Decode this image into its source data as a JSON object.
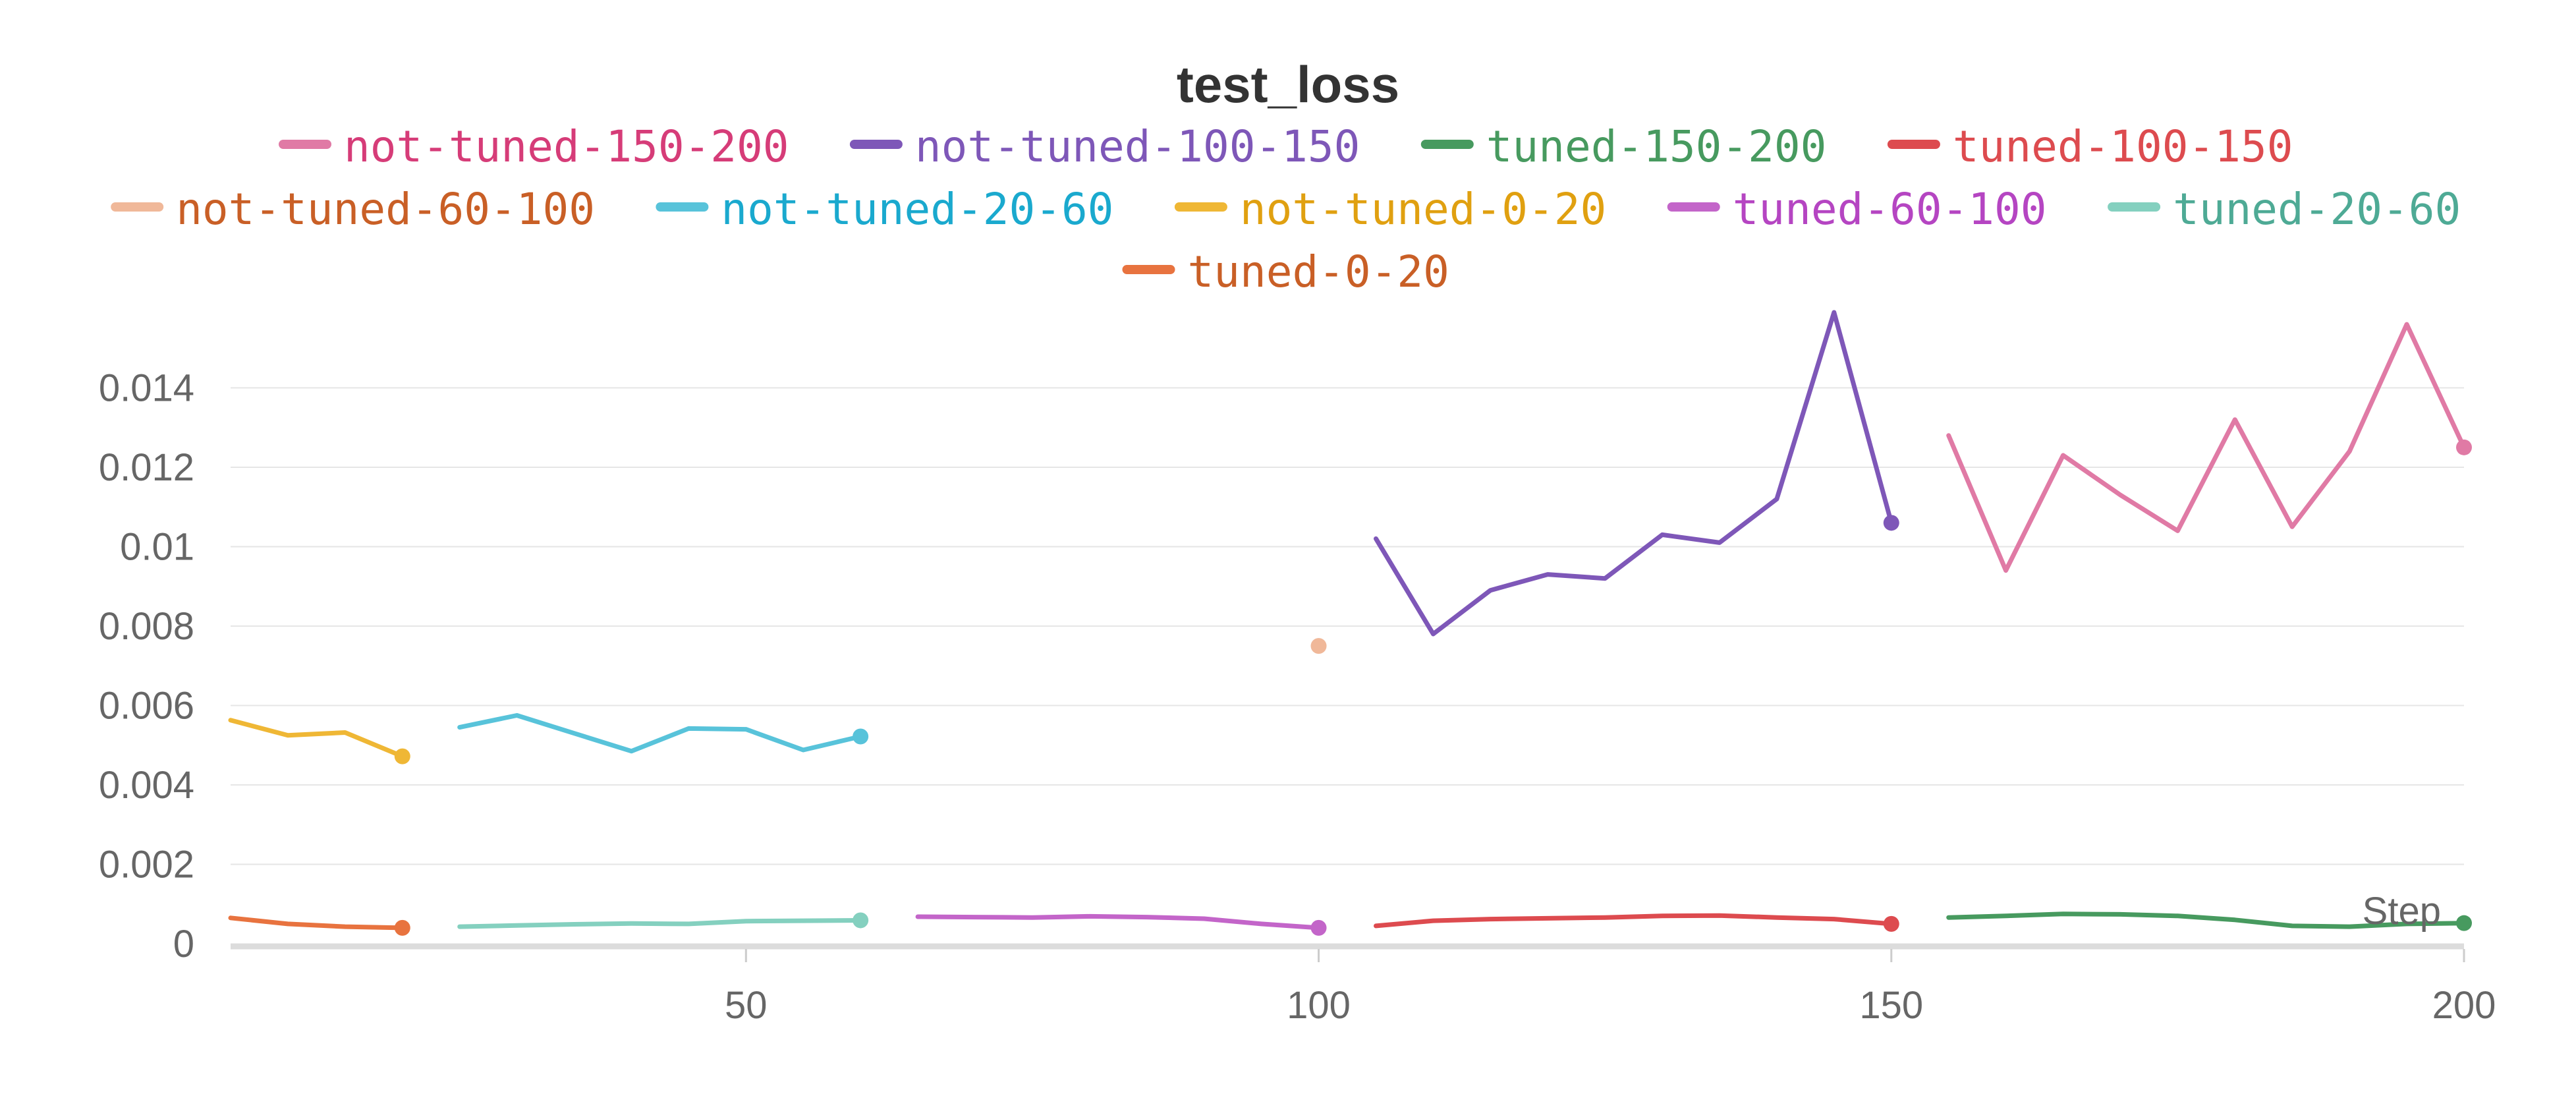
{
  "chart_data": {
    "type": "line",
    "title": "test_loss",
    "xlabel": "Step",
    "ylabel": "",
    "xlim": [
      5,
      200
    ],
    "ylim": [
      0,
      0.0158
    ],
    "x_ticks": [
      50,
      100,
      150,
      200
    ],
    "y_ticks": [
      0,
      0.002,
      0.004,
      0.006,
      0.008,
      0.01,
      0.012,
      0.014
    ],
    "y_tick_labels": [
      "0",
      "0.002",
      "0.004",
      "0.006",
      "0.008",
      "0.01",
      "0.012",
      "0.014"
    ],
    "grid": true,
    "legend_position": "top",
    "series": [
      {
        "name": "not-tuned-150-200",
        "color": "#e07aa5",
        "label_color": "#d63c78",
        "x": [
          155,
          160,
          165,
          170,
          175,
          180,
          185,
          190,
          195,
          200
        ],
        "y": [
          0.0128,
          0.0094,
          0.0123,
          0.0113,
          0.0104,
          0.0132,
          0.0105,
          0.0124,
          0.0156,
          0.0125
        ]
      },
      {
        "name": "not-tuned-100-150",
        "color": "#7e57b8",
        "label_color": "#7e57b8",
        "x": [
          105,
          110,
          115,
          120,
          125,
          130,
          135,
          140,
          145,
          150
        ],
        "y": [
          0.0102,
          0.0078,
          0.0089,
          0.0093,
          0.0092,
          0.0103,
          0.0101,
          0.0112,
          0.0159,
          0.0106
        ]
      },
      {
        "name": "tuned-150-200",
        "color": "#479a5f",
        "label_color": "#479a5f",
        "x": [
          155,
          160,
          165,
          170,
          175,
          180,
          185,
          190,
          195,
          200
        ],
        "y": [
          0.00066,
          0.0007,
          0.00075,
          0.00074,
          0.0007,
          0.0006,
          0.00045,
          0.00043,
          0.0005,
          0.00052
        ]
      },
      {
        "name": "tuned-100-150",
        "color": "#dd4b4f",
        "label_color": "#dd4b4f",
        "x": [
          105,
          110,
          115,
          120,
          125,
          130,
          135,
          140,
          145,
          150
        ],
        "y": [
          0.00045,
          0.00058,
          0.00062,
          0.00064,
          0.00066,
          0.0007,
          0.00071,
          0.00066,
          0.00062,
          0.0005
        ]
      },
      {
        "name": "not-tuned-60-100",
        "color": "#f0b899",
        "label_color": "#c95f26",
        "x": [
          100
        ],
        "y": [
          0.0075
        ]
      },
      {
        "name": "not-tuned-20-60",
        "color": "#58c3da",
        "label_color": "#1aa9ce",
        "x": [
          25,
          30,
          35,
          40,
          45,
          50,
          55,
          60
        ],
        "y": [
          0.00545,
          0.00575,
          0.0053,
          0.00485,
          0.00542,
          0.0054,
          0.00488,
          0.00522
        ]
      },
      {
        "name": "not-tuned-0-20",
        "color": "#efb735",
        "label_color": "#e0a010",
        "x": [
          5,
          10,
          15,
          20
        ],
        "y": [
          0.00563,
          0.00525,
          0.00532,
          0.00472
        ]
      },
      {
        "name": "tuned-60-100",
        "color": "#c365c9",
        "label_color": "#b545c2",
        "x": [
          65,
          70,
          75,
          80,
          85,
          90,
          95,
          100
        ],
        "y": [
          0.00068,
          0.00067,
          0.00066,
          0.00069,
          0.00067,
          0.00063,
          0.0005,
          0.0004
        ]
      },
      {
        "name": "tuned-20-60",
        "color": "#84d0bf",
        "label_color": "#4eaa95",
        "x": [
          25,
          30,
          35,
          40,
          45,
          50,
          55,
          60
        ],
        "y": [
          0.00043,
          0.00046,
          0.00049,
          0.00051,
          0.0005,
          0.00057,
          0.00058,
          0.00059
        ]
      },
      {
        "name": "tuned-0-20",
        "color": "#e8733f",
        "label_color": "#c95f26",
        "x": [
          5,
          10,
          15,
          20
        ],
        "y": [
          0.00065,
          0.0005,
          0.00043,
          0.0004
        ]
      }
    ]
  }
}
